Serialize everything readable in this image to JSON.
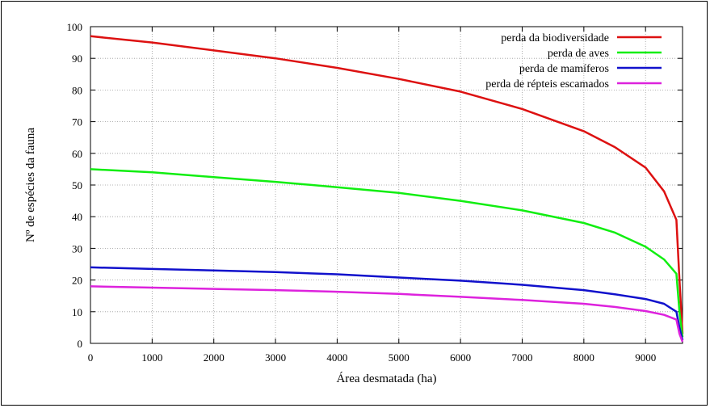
{
  "chart_data": {
    "type": "line",
    "title": "",
    "xlabel": "Área desmatada (ha)",
    "ylabel": "Nº de espécies da fauna",
    "xlim": [
      0,
      9600
    ],
    "ylim": [
      0,
      100
    ],
    "xticks": [
      "0",
      "1000",
      "2000",
      "3000",
      "4000",
      "5000",
      "6000",
      "7000",
      "8000",
      "9000"
    ],
    "yticks": [
      "0",
      "10",
      "20",
      "30",
      "40",
      "50",
      "60",
      "70",
      "80",
      "90",
      "100"
    ],
    "grid": true,
    "legend_position": "top-right",
    "x": [
      0,
      1000,
      2000,
      3000,
      4000,
      5000,
      6000,
      7000,
      8000,
      8500,
      9000,
      9300,
      9500,
      9550,
      9600
    ],
    "series": [
      {
        "name": "perda da biodiversidade",
        "color": "#dd1111",
        "values": [
          97,
          95,
          92.5,
          90,
          87,
          83.5,
          79.5,
          74,
          67,
          62,
          55.5,
          48,
          39,
          20,
          3
        ]
      },
      {
        "name": "perda de aves",
        "color": "#11ee11",
        "values": [
          55,
          54,
          52.5,
          51,
          49.3,
          47.5,
          45,
          42,
          38,
          35,
          30.5,
          26.5,
          22,
          10,
          2
        ]
      },
      {
        "name": "perda de mamíferos",
        "color": "#1111cc",
        "values": [
          24,
          23.5,
          23,
          22.5,
          21.8,
          20.8,
          19.8,
          18.5,
          16.8,
          15.5,
          14,
          12.5,
          10,
          5,
          1
        ]
      },
      {
        "name": "perda de répteis escamados",
        "color": "#dd22dd",
        "values": [
          18,
          17.6,
          17.2,
          16.8,
          16.3,
          15.6,
          14.7,
          13.7,
          12.5,
          11.5,
          10.2,
          9,
          7.5,
          3,
          0.5
        ]
      }
    ]
  }
}
